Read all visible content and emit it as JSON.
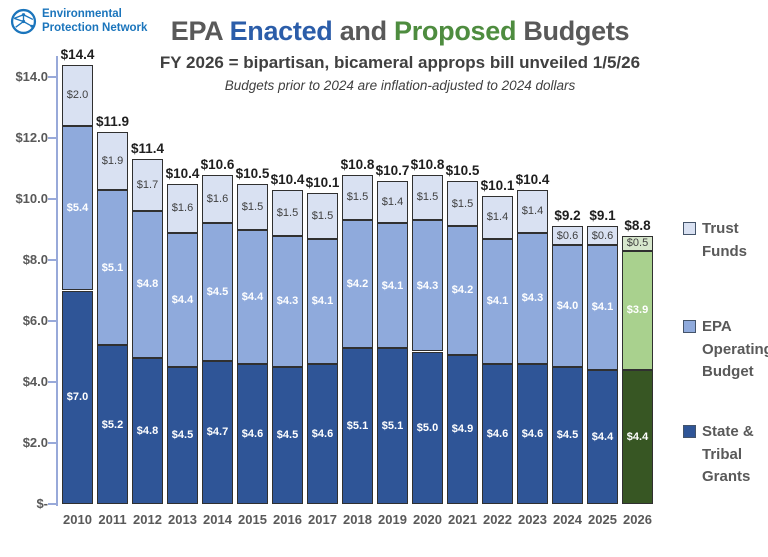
{
  "logo": {
    "line1": "Environmental",
    "line2": "Protection Network",
    "color": "#1B75BC"
  },
  "title": {
    "segments": [
      {
        "text": "EPA ",
        "color": "#595959"
      },
      {
        "text": "Enacted",
        "color": "#2B5DA9"
      },
      {
        "text": " and ",
        "color": "#595959"
      },
      {
        "text": "Proposed",
        "color": "#4E8C3F"
      },
      {
        "text": " Budgets",
        "color": "#595959"
      }
    ]
  },
  "subtitle": "FY 2026 = bipartisan, bicameral approps bill unveiled 1/5/26",
  "note": "Budgets prior to 2024 are inflation-adjusted to 2024 dollars",
  "chart_data": {
    "type": "bar",
    "stacked": true,
    "title": "EPA Enacted and Proposed Budgets",
    "value_prefix": "$",
    "units": "billions of dollars",
    "grid": false,
    "legend_position": "right",
    "ylim": [
      0,
      14.75
    ],
    "categories": [
      "2010",
      "2011",
      "2012",
      "2013",
      "2014",
      "2015",
      "2016",
      "2017",
      "2018",
      "2019",
      "2020",
      "2021",
      "2022",
      "2023",
      "2024",
      "2025",
      "2026"
    ],
    "series": [
      {
        "name": "State & Tribal Grants",
        "color": "#2F5597",
        "color_final_year": "#375623",
        "label_color": "#FFFFFF",
        "label_bold": true,
        "values": [
          7.0,
          5.2,
          4.8,
          4.5,
          4.7,
          4.6,
          4.5,
          4.6,
          5.1,
          5.1,
          5.0,
          4.9,
          4.6,
          4.6,
          4.5,
          4.4,
          4.4
        ]
      },
      {
        "name": "EPA Operating Budget",
        "color": "#8FAADC",
        "color_final_year": "#A9D18E",
        "label_color": "#FFFFFF",
        "label_bold": true,
        "values": [
          5.4,
          5.1,
          4.8,
          4.4,
          4.5,
          4.4,
          4.3,
          4.1,
          4.2,
          4.1,
          4.3,
          4.2,
          4.1,
          4.3,
          4.0,
          4.1,
          3.9
        ]
      },
      {
        "name": "Trust Funds",
        "color": "#D9E1F2",
        "color_final_year": "#D7E7CC",
        "label_color": "#3F3F3F",
        "label_bold": false,
        "values": [
          2.0,
          1.9,
          1.7,
          1.6,
          1.6,
          1.5,
          1.5,
          1.5,
          1.5,
          1.4,
          1.5,
          1.5,
          1.4,
          1.4,
          0.6,
          0.6,
          0.5
        ]
      }
    ],
    "totals": [
      14.4,
      11.9,
      11.4,
      10.4,
      10.6,
      10.5,
      10.4,
      10.1,
      10.8,
      10.7,
      10.8,
      10.5,
      10.1,
      10.4,
      9.2,
      9.1,
      8.8
    ],
    "y_ticks": [
      {
        "label": "$14.0",
        "value": 14
      },
      {
        "label": "$12.0",
        "value": 12
      },
      {
        "label": "$10.0",
        "value": 10
      },
      {
        "label": "$8.0",
        "value": 8
      },
      {
        "label": "$6.0",
        "value": 6
      },
      {
        "label": "$4.0",
        "value": 4
      },
      {
        "label": "$2.0",
        "value": 2
      },
      {
        "label": "$-",
        "value": 0
      }
    ],
    "final_year_note": "2026 proposed budget shown in green"
  },
  "legend": {
    "items": [
      {
        "label": "Trust Funds",
        "swatch_color": "#D9E1F2"
      },
      {
        "label": "EPA Operating Budget",
        "swatch_color": "#8FAADC"
      },
      {
        "label": "State & Tribal Grants",
        "swatch_color": "#2F5597"
      }
    ]
  }
}
